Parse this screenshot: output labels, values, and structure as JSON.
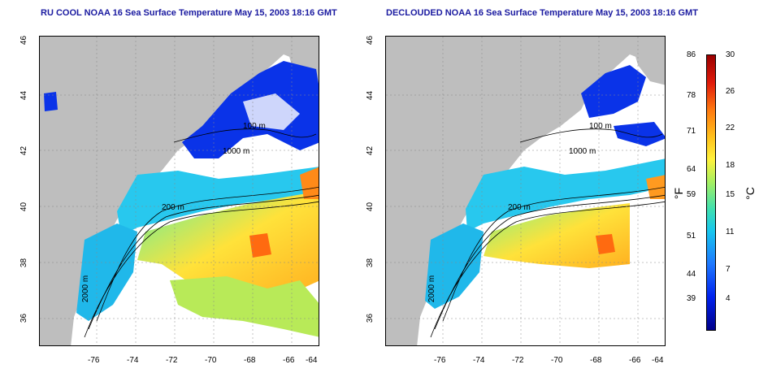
{
  "left_panel": {
    "title": "RU COOL NOAA 16 Sea Surface Temperature May 15, 2003 18:16 GMT"
  },
  "right_panel": {
    "title": "DECLOUDED NOAA 16 Sea Surface Temperature May 15, 2003 18:16 GMT"
  },
  "axes": {
    "x_ticks": [
      "-76",
      "-74",
      "-72",
      "-70",
      "-68",
      "-66",
      "-64"
    ],
    "y_ticks": [
      "46",
      "44",
      "42",
      "40",
      "38",
      "36"
    ]
  },
  "contours": {
    "labels": [
      "100 m",
      "200 m",
      "1000 m",
      "2000 m"
    ]
  },
  "colorbar": {
    "fahrenheit_ticks": [
      "86",
      "78",
      "71",
      "64",
      "59",
      "51",
      "44",
      "39"
    ],
    "celsius_ticks": [
      "30",
      "26",
      "22",
      "18",
      "15",
      "11",
      "7",
      "4"
    ],
    "fahrenheit_unit": "°F",
    "celsius_unit": "°C"
  },
  "colors": {
    "title": "#1a1aa0",
    "land": "#bebebe",
    "cold": "#0022ee",
    "warm": "#ff7a10"
  }
}
